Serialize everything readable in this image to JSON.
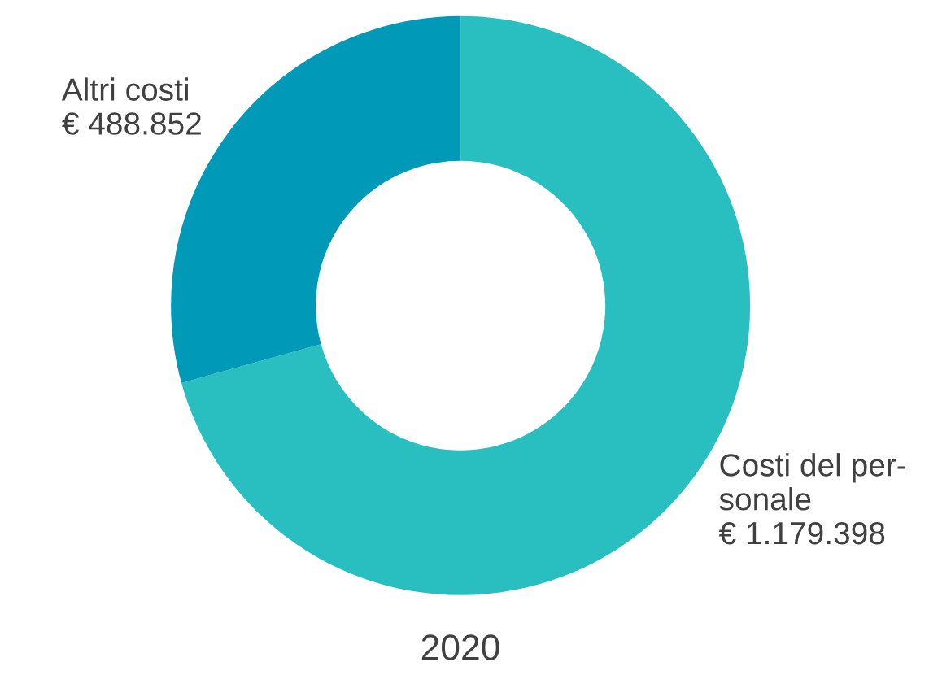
{
  "chart_data": {
    "type": "donut",
    "title": "2020",
    "categories": [
      "Costi del per-\nsonale",
      "Altri costi"
    ],
    "values": [
      1179398,
      488852
    ],
    "colors": [
      "#29bfc1",
      "#0099b8"
    ],
    "value_labels": [
      "€ 1.179.398",
      "€ 488.852"
    ],
    "legend": false
  }
}
